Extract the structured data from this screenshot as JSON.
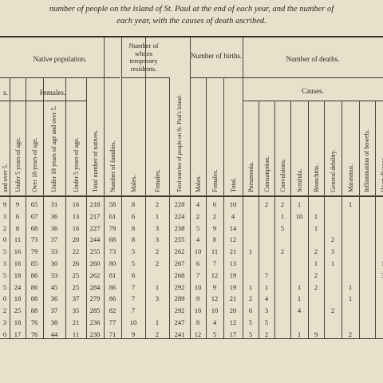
{
  "title": {
    "line1": "number of people on the island of St. Paul at the end of each year, and the number of",
    "line2": "each year, with the causes of death ascribed."
  },
  "headers": {
    "native_population": "Native population.",
    "males_fragment": "s.",
    "females": "Females.",
    "whites": "Number of whites temporary residents.",
    "births": "Number of births.",
    "deaths": "Number of deaths.",
    "causes": "Causes."
  },
  "column_headers": [
    "and over 5.",
    "Under 5 years of age.",
    "Over 18 years of age.",
    "Under 18 years of age and over 5.",
    "Under 5 years of age.",
    "Total number of natives.",
    "Number of families.",
    "Males.",
    "Females.",
    "Total number of people on St. Paul's Island.",
    "Males.",
    "Females.",
    "Total.",
    "Pneumonia.",
    "Consumption.",
    "Convulsions.",
    "Scrofula.",
    "Bronchitis.",
    "General debility.",
    "Marasmus.",
    "Inflammation of bowels.",
    "Heart disease."
  ],
  "rows": [
    [
      "9",
      "9",
      "65",
      "31",
      "16",
      "218",
      "58",
      "8",
      "2",
      "228",
      "4",
      "6",
      "10",
      "",
      "2",
      "2",
      "1",
      "",
      "",
      "1",
      "",
      ""
    ],
    [
      "3",
      "6",
      "67",
      "36",
      "13",
      "217",
      "61",
      "6",
      "1",
      "224",
      "2",
      "2",
      "4",
      "",
      "",
      "1",
      "10",
      "1",
      "",
      "",
      "",
      ""
    ],
    [
      "2",
      "8",
      "68",
      "36",
      "16",
      "227",
      "79",
      "8",
      "3",
      "238",
      "5",
      "9",
      "14",
      "",
      "",
      "5",
      "",
      "1",
      "",
      "",
      "",
      ""
    ],
    [
      "0",
      "11",
      "73",
      "37",
      "20",
      "244",
      "68",
      "8",
      "3",
      "255",
      "4",
      "8",
      "12",
      "",
      "",
      "",
      "",
      "",
      "2",
      "",
      "",
      ""
    ],
    [
      "5",
      "16",
      "79",
      "33",
      "22",
      "255",
      "73",
      "5",
      "2",
      "262",
      "10",
      "11",
      "21",
      "1",
      "",
      "2",
      "",
      "2",
      "3",
      "",
      "",
      ""
    ],
    [
      "3",
      "16",
      "85",
      "30",
      "26",
      "260",
      "80",
      "5",
      "2",
      "267",
      "6",
      "7",
      "13",
      "",
      "",
      "",
      "",
      "1",
      "1",
      "",
      "",
      "1"
    ],
    [
      "5",
      "18",
      "86",
      "33",
      "25",
      "262",
      "81",
      "6",
      "",
      "268",
      "7",
      "12",
      "19",
      "",
      "7",
      "",
      "",
      "2",
      "",
      "",
      "",
      "3"
    ],
    [
      "5",
      "24",
      "86",
      "45",
      "25",
      "284",
      "86",
      "7",
      "1",
      "292",
      "10",
      "9",
      "19",
      "1",
      "1",
      "",
      "1",
      "2",
      "",
      "1",
      "",
      ""
    ],
    [
      "0",
      "18",
      "88",
      "36",
      "37",
      "279",
      "86",
      "7",
      "3",
      "289",
      "9",
      "12",
      "21",
      "2",
      "4",
      "",
      "1",
      "",
      "",
      "1",
      "",
      ""
    ],
    [
      "2",
      "25",
      "88",
      "37",
      "35",
      "285",
      "82",
      "7",
      "",
      "292",
      "10",
      "10",
      "20",
      "6",
      "3",
      "",
      "4",
      "",
      "2",
      "",
      "",
      ""
    ],
    [
      "3",
      "18",
      "76",
      "38",
      "21",
      "236",
      "77",
      "10",
      "1",
      "247",
      "8",
      "4",
      "12",
      "5",
      "5",
      "",
      "",
      "",
      "",
      "",
      "",
      ""
    ],
    [
      "0",
      "17",
      "76",
      "44",
      "11",
      "230",
      "71",
      "9",
      "2",
      "241",
      "12",
      "5",
      "17",
      "5",
      "2",
      "",
      "1",
      "9",
      "",
      "2",
      "",
      ""
    ]
  ]
}
